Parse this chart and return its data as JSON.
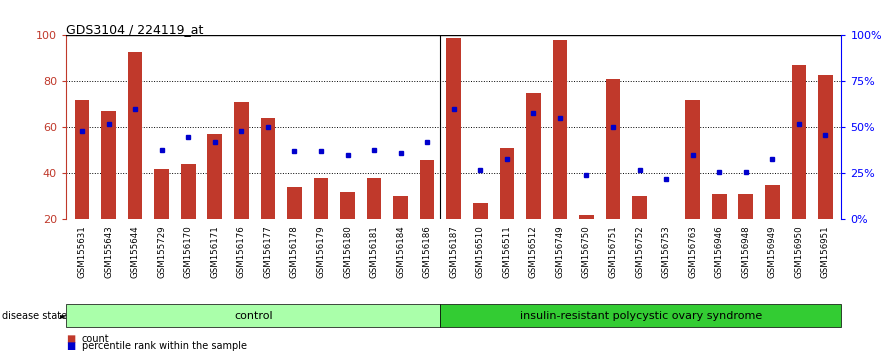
{
  "title": "GDS3104 / 224119_at",
  "samples": [
    "GSM155631",
    "GSM155643",
    "GSM155644",
    "GSM155729",
    "GSM156170",
    "GSM156171",
    "GSM156176",
    "GSM156177",
    "GSM156178",
    "GSM156179",
    "GSM156180",
    "GSM156181",
    "GSM156184",
    "GSM156186",
    "GSM156187",
    "GSM156510",
    "GSM156511",
    "GSM156512",
    "GSM156749",
    "GSM156750",
    "GSM156751",
    "GSM156752",
    "GSM156753",
    "GSM156763",
    "GSM156946",
    "GSM156948",
    "GSM156949",
    "GSM156950",
    "GSM156951"
  ],
  "count_values": [
    72,
    67,
    93,
    42,
    44,
    57,
    71,
    64,
    34,
    38,
    32,
    38,
    30,
    46,
    99,
    27,
    51,
    75,
    98,
    22,
    81,
    30,
    16,
    72,
    31,
    31,
    35,
    87,
    83
  ],
  "percentile_values": [
    48,
    52,
    60,
    38,
    45,
    42,
    48,
    50,
    37,
    37,
    35,
    38,
    36,
    42,
    60,
    27,
    33,
    58,
    55,
    24,
    50,
    27,
    22,
    35,
    26,
    26,
    33,
    52,
    46
  ],
  "control_count": 14,
  "disease_count": 15,
  "control_label": "control",
  "disease_label": "insulin-resistant polycystic ovary syndrome",
  "bar_color": "#C0392B",
  "percentile_color": "#0000CC",
  "control_bg": "#AAFFAA",
  "disease_bg": "#33CC33",
  "ylim_left": [
    20,
    100
  ],
  "yticks_left": [
    20,
    40,
    60,
    80,
    100
  ],
  "yticks_right": [
    0,
    25,
    50,
    75,
    100
  ],
  "ytick_labels_right": [
    "0%",
    "25%",
    "50%",
    "75%",
    "100%"
  ],
  "bg_color": "#FFFFFF"
}
